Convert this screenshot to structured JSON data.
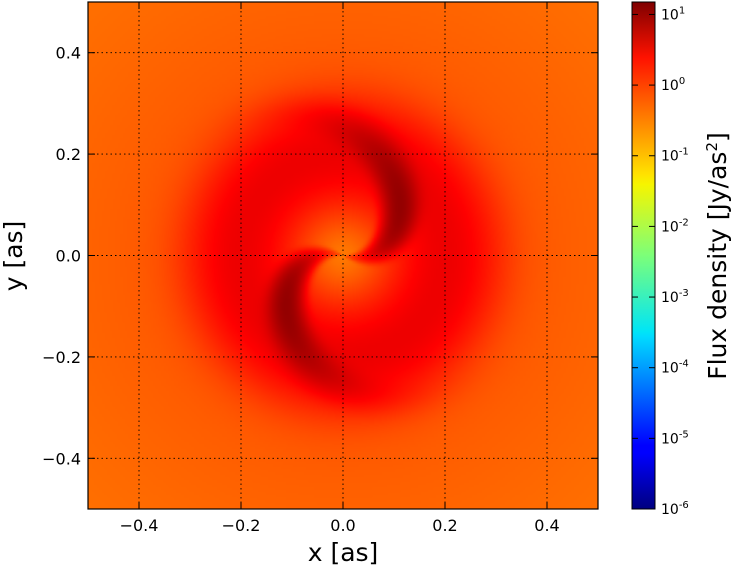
{
  "chart_data": {
    "type": "heatmap",
    "title": "",
    "xlabel": "x [as]",
    "ylabel": "y [as]",
    "xlim": [
      -0.5,
      0.5
    ],
    "ylim": [
      -0.5,
      0.5
    ],
    "x_ticks": [
      -0.4,
      -0.2,
      0.0,
      0.2,
      0.4
    ],
    "y_ticks": [
      -0.4,
      -0.2,
      0.0,
      0.2,
      0.4
    ],
    "x_tick_labels": [
      "−0.4",
      "−0.2",
      "0.0",
      "0.2",
      "0.4"
    ],
    "y_tick_labels": [
      "−0.4",
      "−0.2",
      "0.0",
      "0.2",
      "0.4"
    ],
    "grid": true,
    "colormap": "jet",
    "color_scale": "log",
    "color_range": [
      1e-06,
      15
    ],
    "colorbar": {
      "label": "Flux density [Jy/as²]",
      "ticks": [
        1e-06,
        1e-05,
        0.0001,
        0.001,
        0.01,
        0.1,
        1,
        10
      ],
      "tick_labels": [
        {
          "base": "10",
          "exp": "-6"
        },
        {
          "base": "10",
          "exp": "-5"
        },
        {
          "base": "10",
          "exp": "-4"
        },
        {
          "base": "10",
          "exp": "-3"
        },
        {
          "base": "10",
          "exp": "-2"
        },
        {
          "base": "10",
          "exp": "-1"
        },
        {
          "base": "10",
          "exp": "0"
        },
        {
          "base": "10",
          "exp": "1"
        }
      ]
    },
    "image_description": "Two-armed spiral (S-shaped) emission pattern; peak flux density ~10 Jy/as² at about (0.11, 0.08) and (-0.11, -0.08), ring of ~2 Jy/as² at radius ~0.2–0.25 as, background ~0.1–0.3 Jy/as² at the edges."
  }
}
